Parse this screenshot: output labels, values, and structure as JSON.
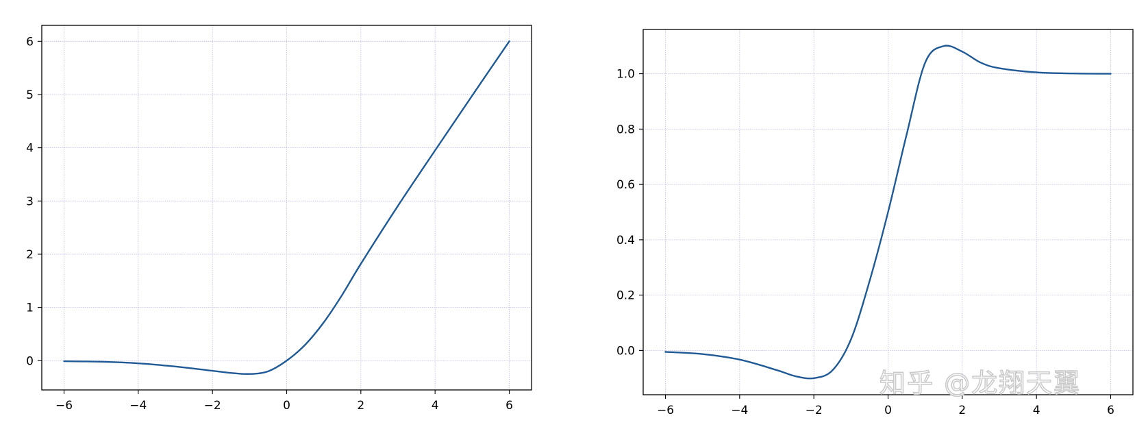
{
  "chart_data": [
    {
      "type": "line",
      "title": "",
      "xlabel": "",
      "ylabel": "",
      "grid": true,
      "xlim": [
        -6.6,
        6.6
      ],
      "ylim": [
        -0.55,
        6.3
      ],
      "xticks": [
        -6,
        -4,
        -2,
        0,
        2,
        4,
        6
      ],
      "yticks": [
        0,
        1,
        2,
        3,
        4,
        5,
        6
      ],
      "xtick_labels": [
        "−6",
        "−4",
        "−2",
        "0",
        "2",
        "4",
        "6"
      ],
      "ytick_labels": [
        "0",
        "1",
        "2",
        "3",
        "4",
        "5",
        "6"
      ],
      "series": [
        {
          "color": "#1f5a96",
          "x": [
            -6,
            -5,
            -4,
            -3,
            -2,
            -1.5,
            -1,
            -0.5,
            0,
            0.5,
            1,
            1.5,
            2,
            3,
            4,
            5,
            6
          ],
          "y": [
            -0.01,
            -0.02,
            -0.05,
            -0.11,
            -0.19,
            -0.23,
            -0.25,
            -0.2,
            0,
            0.3,
            0.72,
            1.24,
            1.82,
            2.91,
            3.95,
            4.98,
            6.0
          ]
        }
      ]
    },
    {
      "type": "line",
      "title": "",
      "xlabel": "",
      "ylabel": "",
      "grid": true,
      "xlim": [
        -6.6,
        6.6
      ],
      "ylim": [
        -0.16,
        1.16
      ],
      "xticks": [
        -6,
        -4,
        -2,
        0,
        2,
        4,
        6
      ],
      "yticks": [
        0.0,
        0.2,
        0.4,
        0.6,
        0.8,
        1.0
      ],
      "xtick_labels": [
        "−6",
        "−4",
        "−2",
        "0",
        "2",
        "4",
        "6"
      ],
      "ytick_labels": [
        "0.0",
        "0.2",
        "0.4",
        "0.6",
        "0.8",
        "1.0"
      ],
      "series": [
        {
          "color": "#1f5a96",
          "x": [
            -6,
            -5,
            -4,
            -3,
            -2.5,
            -2,
            -1.5,
            -1,
            -0.5,
            0,
            0.5,
            1,
            1.5,
            2,
            2.5,
            3,
            4,
            5,
            6
          ],
          "y": [
            -0.005,
            -0.013,
            -0.033,
            -0.071,
            -0.093,
            -0.1,
            -0.072,
            0.04,
            0.25,
            0.5,
            0.78,
            1.04,
            1.1,
            1.08,
            1.04,
            1.02,
            1.005,
            1.001,
            1.0
          ]
        }
      ]
    }
  ],
  "watermark": "知乎 @龙翔天翼"
}
